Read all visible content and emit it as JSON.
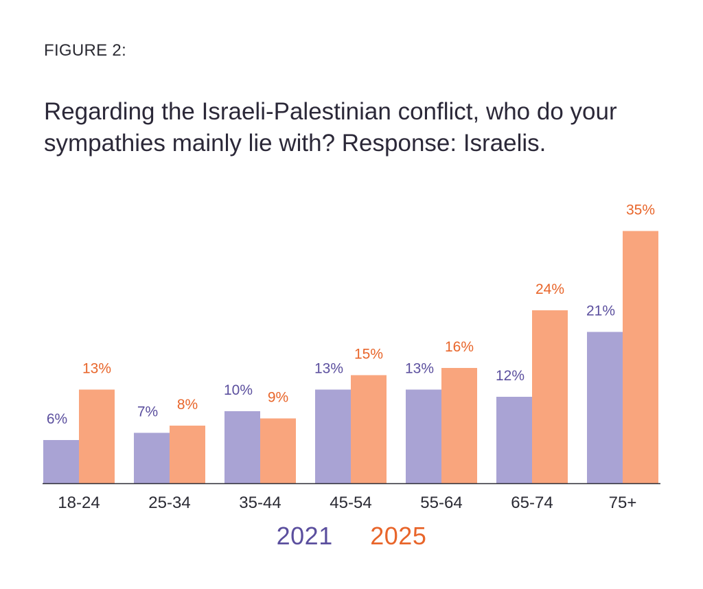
{
  "header": {
    "figure_label": "FIGURE 2:",
    "title": "Regarding the Israeli-Palestinian conflict, who do your sympathies mainly lie with? Response: Israelis."
  },
  "colors": {
    "series_2021": "#a9a3d4",
    "series_2025": "#f9a57d",
    "label_2021": "#5b4f9e",
    "label_2025": "#e8652a",
    "axis": "#2a2a33"
  },
  "chart_data": {
    "type": "bar",
    "title": "Regarding the Israeli-Palestinian conflict, who do your sympathies mainly lie with? Response: Israelis.",
    "xlabel": "",
    "ylabel": "",
    "categories": [
      "18-24",
      "25-34",
      "35-44",
      "45-54",
      "55-64",
      "65-74",
      "75+"
    ],
    "series": [
      {
        "name": "2021",
        "values": [
          6,
          7,
          10,
          13,
          13,
          12,
          21
        ],
        "labels": [
          "6%",
          "7%",
          "10%",
          "13%",
          "13%",
          "12%",
          "21%"
        ]
      },
      {
        "name": "2025",
        "values": [
          13,
          8,
          9,
          15,
          16,
          24,
          35
        ],
        "labels": [
          "13%",
          "8%",
          "9%",
          "15%",
          "16%",
          "24%",
          "35%"
        ]
      }
    ],
    "ylim": [
      0,
      35
    ],
    "grid": false,
    "legend_position": "bottom-center"
  }
}
